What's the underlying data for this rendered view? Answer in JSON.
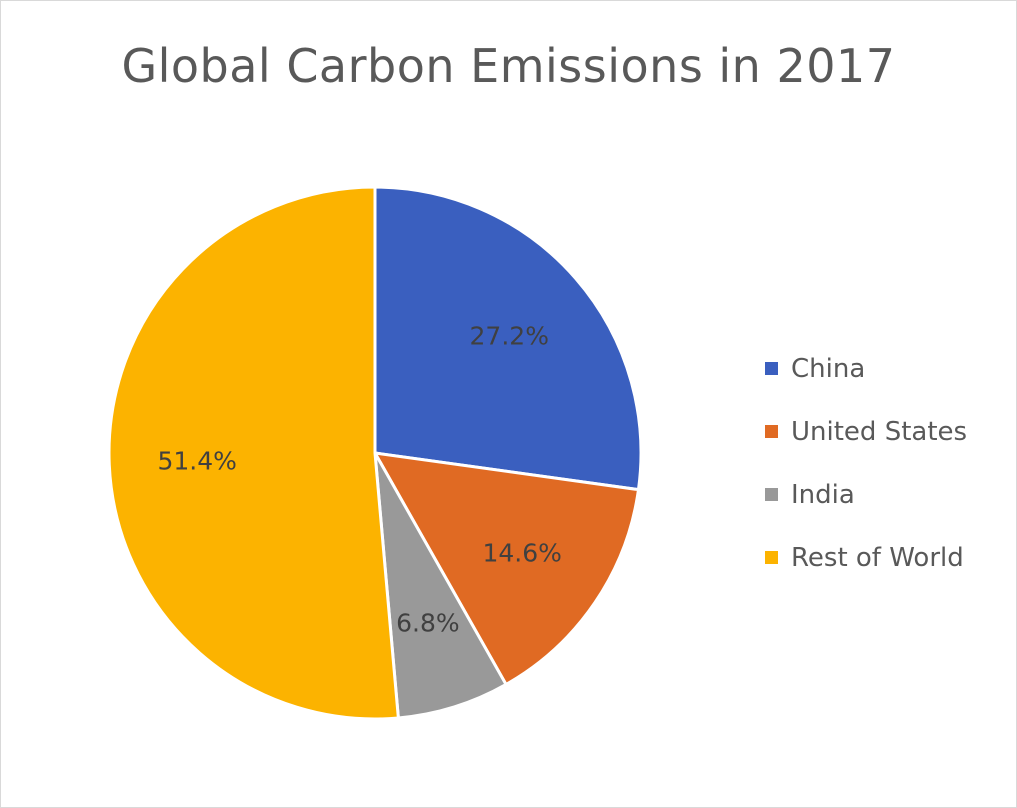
{
  "chart_data": {
    "type": "pie",
    "title": "Global Carbon Emissions in 2017",
    "categories": [
      "China",
      "United States",
      "India",
      "Rest of World"
    ],
    "values": [
      27.2,
      14.6,
      6.8,
      51.4
    ],
    "labels": [
      "27.2%",
      "14.6%",
      "6.8%",
      "51.4%"
    ],
    "colors": [
      "#3a5fbf",
      "#e06a23",
      "#999999",
      "#fcb300"
    ],
    "legend_placement": "right"
  }
}
